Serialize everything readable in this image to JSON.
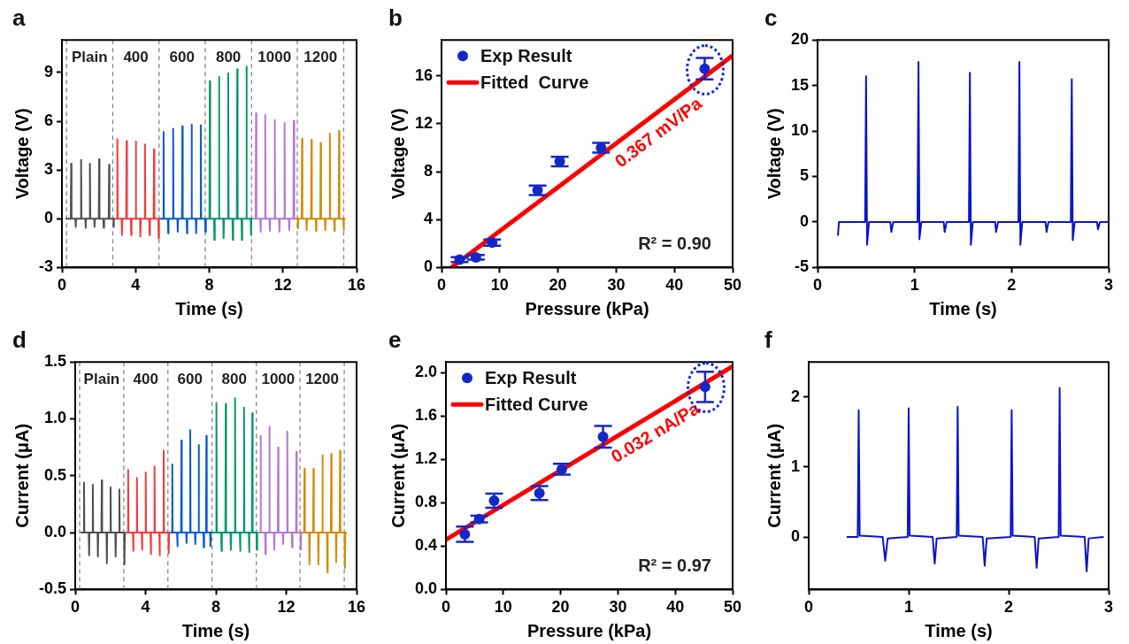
{
  "chart_data": [
    {
      "type": "line",
      "title": "a",
      "xlabel": "Time (s)",
      "ylabel": "Voltage (V)",
      "xlim": [
        0,
        16
      ],
      "xticks": [
        0,
        4,
        8,
        12,
        16
      ],
      "ylim": [
        -3,
        11
      ],
      "yticks": [
        -3,
        0,
        3,
        6,
        9
      ],
      "ref_lines": [
        {
          "axis": "x",
          "value": 0.25
        },
        {
          "axis": "x",
          "value": 2.76
        },
        {
          "axis": "x",
          "value": 5.27
        },
        {
          "axis": "x",
          "value": 7.78
        },
        {
          "axis": "x",
          "value": 10.3
        },
        {
          "axis": "x",
          "value": 12.78
        },
        {
          "axis": "x",
          "value": 15.3
        }
      ],
      "annotations": [
        "Plain",
        "400",
        "600",
        "800",
        "1000",
        "1200"
      ],
      "series": [
        {
          "color": "#505050",
          "x": [
            0.2,
            0.48,
            0.5,
            0.52,
            0.73,
            0.75,
            0.77,
            1.02,
            1.04,
            1.06,
            1.27,
            1.29,
            1.31,
            1.5,
            1.52,
            1.54,
            1.75,
            1.77,
            1.79,
            2.0,
            2.02,
            2.04,
            2.25,
            2.27,
            2.29,
            2.54,
            2.56,
            2.58,
            2.79,
            2.81,
            2.83,
            2.84
          ],
          "values": [
            0,
            0,
            3.39,
            0,
            0,
            -0.5,
            0,
            0,
            3.62,
            0,
            0,
            -0.55,
            0,
            0,
            3.39,
            0,
            0,
            -0.5,
            0,
            0,
            3.66,
            0,
            0,
            -0.55,
            0,
            0,
            3.32,
            0,
            0,
            -0.5,
            0,
            0
          ]
        },
        {
          "color": "#f03c3c",
          "x": [
            2.84,
            2.99,
            3.01,
            3.03,
            3.24,
            3.26,
            3.28,
            3.49,
            3.51,
            3.53,
            3.74,
            3.76,
            3.78,
            3.99,
            4.01,
            4.03,
            4.24,
            4.26,
            4.28,
            4.49,
            4.51,
            4.53,
            4.74,
            4.76,
            4.78,
            4.98,
            5.0,
            5.02,
            5.23,
            5.25,
            5.27,
            5.3
          ],
          "values": [
            0,
            0,
            4.89,
            0,
            0,
            -1.0,
            0,
            0,
            4.78,
            0,
            0,
            -1.0,
            0,
            0,
            4.75,
            0,
            0,
            -1.1,
            0,
            0,
            4.58,
            0,
            0,
            -1.0,
            0,
            0,
            4.28,
            0,
            0,
            -1.2,
            0,
            0
          ]
        },
        {
          "color": "#0a5ad2",
          "x": [
            5.3,
            5.5,
            5.52,
            5.54,
            5.75,
            5.77,
            5.79,
            6.02,
            6.04,
            6.06,
            6.27,
            6.29,
            6.31,
            6.52,
            6.54,
            6.56,
            6.77,
            6.79,
            6.81,
            7.02,
            7.04,
            7.06,
            7.27,
            7.29,
            7.31,
            7.52,
            7.54,
            7.56,
            7.77,
            7.79,
            7.81,
            7.83
          ],
          "values": [
            0,
            0,
            5.33,
            0,
            0,
            -0.9,
            0,
            0,
            5.54,
            0,
            0,
            -0.8,
            0,
            0,
            5.69,
            0,
            0,
            -0.9,
            0,
            0,
            5.8,
            0,
            0,
            -0.9,
            0,
            0,
            5.76,
            0,
            0,
            -0.8,
            0,
            0
          ]
        },
        {
          "color": "#05966a",
          "x": [
            7.83,
            8.01,
            8.03,
            8.05,
            8.26,
            8.28,
            8.3,
            8.51,
            8.53,
            8.55,
            8.76,
            8.78,
            8.8,
            9.01,
            9.03,
            9.05,
            9.26,
            9.28,
            9.3,
            9.5,
            9.52,
            9.54,
            9.75,
            9.77,
            9.79,
            10.0,
            10.02,
            10.04,
            10.25,
            10.27,
            10.29,
            10.35
          ],
          "values": [
            0,
            0,
            8.46,
            0,
            0,
            -1.3,
            0,
            0,
            8.73,
            0,
            0,
            -1.2,
            0,
            0,
            8.95,
            0,
            0,
            -1.3,
            0,
            0,
            9.2,
            0,
            0,
            -1.3,
            0,
            0,
            9.37,
            0,
            0,
            -1.0,
            0,
            0
          ]
        },
        {
          "color": "#b478d2",
          "x": [
            10.35,
            10.52,
            10.54,
            10.56,
            10.77,
            10.79,
            10.81,
            11.02,
            11.04,
            11.06,
            11.27,
            11.29,
            11.31,
            11.54,
            11.56,
            11.58,
            11.79,
            11.81,
            11.83,
            12.07,
            12.09,
            12.11,
            12.32,
            12.34,
            12.36,
            12.57,
            12.59,
            12.61,
            12.62
          ],
          "values": [
            0,
            0,
            6.49,
            0,
            0,
            -0.8,
            0,
            0,
            6.39,
            0,
            0,
            -0.75,
            0,
            0,
            6.07,
            0,
            0,
            -0.8,
            0,
            0,
            5.89,
            0,
            0,
            -0.7,
            0,
            0,
            6.03,
            0,
            0
          ]
        },
        {
          "color": "#d28c05",
          "x": [
            12.62,
            12.8,
            12.82,
            12.84,
            13.02,
            13.04,
            13.06,
            13.27,
            13.29,
            13.31,
            13.53,
            13.55,
            13.57,
            13.78,
            13.8,
            13.82,
            14.03,
            14.05,
            14.07,
            14.28,
            14.3,
            14.32,
            14.53,
            14.55,
            14.57,
            14.78,
            14.8,
            14.82,
            15.03,
            15.05,
            15.07,
            15.28,
            15.3,
            15.32,
            15.4
          ],
          "values": [
            0,
            0,
            -0.6,
            0,
            0,
            4.93,
            0,
            0,
            -0.7,
            0,
            0,
            4.86,
            0,
            0,
            -0.75,
            0,
            0,
            4.66,
            0,
            0,
            -0.7,
            0,
            0,
            5.24,
            0,
            0,
            -0.75,
            0,
            0,
            5.4,
            0,
            0,
            -0.7,
            0,
            0
          ]
        }
      ]
    },
    {
      "type": "scatter",
      "title": "b",
      "xlabel": "Pressure (kPa)",
      "ylabel": "Voltage (V)",
      "xlim": [
        0,
        50
      ],
      "xticks": [
        0,
        10,
        20,
        30,
        40,
        50
      ],
      "ylim": [
        0,
        19
      ],
      "yticks": [
        0,
        4,
        8,
        12,
        16
      ],
      "legend": "top left",
      "annotations": [
        "0.367 mV/Pa",
        "R² = 0.90"
      ],
      "series": [
        {
          "name": "Exp Result",
          "marker": "circle",
          "color": "#1428c8",
          "x": [
            3.1,
            5.9,
            8.7,
            16.5,
            20.3,
            27.4,
            45.2
          ],
          "values": [
            0.66,
            0.85,
            2.08,
            6.45,
            8.85,
            10.0,
            16.6
          ],
          "errors": [
            0.2,
            0.2,
            0.25,
            0.4,
            0.4,
            0.4,
            0.9
          ]
        },
        {
          "name": "Fitted  Curve",
          "type": "line",
          "color": "#ff0000",
          "x": [
            1.7,
            50
          ],
          "values": [
            0,
            17.7
          ]
        }
      ]
    },
    {
      "type": "line",
      "title": "c",
      "xlabel": "Time (s)",
      "ylabel": "Voltage (V)",
      "xlim": [
        0,
        3
      ],
      "xticks": [
        0,
        1,
        2,
        3
      ],
      "ylim": [
        -5,
        20
      ],
      "yticks": [
        -5,
        0,
        5,
        10,
        15,
        20
      ],
      "series": [
        {
          "color": "#0a14c8",
          "x": [
            0.21,
            0.22,
            0.49,
            0.5,
            0.51,
            0.53,
            0.75,
            0.76,
            0.78,
            1.03,
            1.04,
            1.05,
            1.07,
            1.3,
            1.31,
            1.33,
            1.56,
            1.57,
            1.58,
            1.6,
            1.83,
            1.84,
            1.86,
            2.07,
            2.08,
            2.09,
            2.11,
            2.35,
            2.36,
            2.38,
            2.61,
            2.62,
            2.63,
            2.65,
            2.88,
            2.89,
            2.91,
            3.0
          ],
          "values": [
            -1.5,
            0,
            0,
            16.0,
            -2.5,
            0,
            0,
            -1.1,
            0,
            0,
            17.6,
            -1.9,
            0,
            0,
            -1.1,
            0,
            0,
            16.4,
            -2.5,
            0,
            0,
            -1.1,
            0,
            0,
            17.6,
            -2.5,
            0,
            0,
            -1.1,
            0,
            0,
            15.7,
            -2.0,
            0,
            0,
            -0.8,
            0,
            0
          ]
        }
      ]
    },
    {
      "type": "line",
      "title": "d",
      "xlabel": "Time (s)",
      "ylabel": "Current (μA)",
      "xlim": [
        0,
        16
      ],
      "xticks": [
        0,
        4,
        8,
        12,
        16
      ],
      "ylim": [
        -0.5,
        1.5
      ],
      "yticks": [
        -0.5,
        {
          "value": 0,
          "label": "0.0"
        },
        0.5,
        {
          "value": 1,
          "label": "1.0"
        },
        1.5
      ],
      "ref_lines": [
        {
          "axis": "x",
          "value": 0.25
        },
        {
          "axis": "x",
          "value": 2.76
        },
        {
          "axis": "x",
          "value": 5.27
        },
        {
          "axis": "x",
          "value": 7.78
        },
        {
          "axis": "x",
          "value": 10.3
        },
        {
          "axis": "x",
          "value": 12.78
        },
        {
          "axis": "x",
          "value": 15.3
        }
      ],
      "annotations": [
        "Plain",
        "400",
        "600",
        "800",
        "1000",
        "1200"
      ],
      "series": [
        {
          "color": "#505050",
          "x": [
            0.3,
            0.48,
            0.5,
            0.52,
            0.77,
            0.79,
            0.81,
            0.98,
            1.0,
            1.02,
            1.27,
            1.29,
            1.31,
            1.49,
            1.51,
            1.53,
            1.78,
            1.8,
            1.82,
            1.99,
            2.01,
            2.03,
            2.28,
            2.3,
            2.32,
            2.49,
            2.51,
            2.53,
            2.78,
            2.8,
            2.82,
            2.86
          ],
          "values": [
            0,
            0,
            0.44,
            0,
            0,
            -0.2,
            0,
            0,
            0.42,
            0,
            0,
            -0.21,
            0,
            0,
            0.46,
            0,
            0,
            -0.27,
            0,
            0,
            0.4,
            0,
            0,
            -0.21,
            0,
            0,
            0.38,
            0,
            0,
            -0.28,
            0,
            0
          ]
        },
        {
          "color": "#f03c3c",
          "x": [
            2.86,
            2.99,
            3.01,
            3.03,
            3.28,
            3.3,
            3.32,
            3.49,
            3.51,
            3.53,
            3.78,
            3.8,
            3.82,
            3.99,
            4.01,
            4.03,
            4.28,
            4.3,
            4.32,
            4.49,
            4.51,
            4.53,
            4.78,
            4.8,
            4.82,
            5.01,
            5.03,
            5.05,
            5.3,
            5.32,
            5.34,
            5.35
          ],
          "values": [
            0,
            0,
            0.55,
            0,
            0,
            -0.16,
            0,
            0,
            0.48,
            0,
            0,
            -0.15,
            0,
            0,
            0.53,
            0,
            0,
            -0.19,
            0,
            0,
            0.58,
            0,
            0,
            -0.2,
            0,
            0,
            0.72,
            0,
            0,
            -0.18,
            0,
            0
          ]
        },
        {
          "color": "#0a5ad2",
          "x": [
            5.35,
            5.5,
            5.52,
            5.54,
            5.79,
            5.81,
            5.83,
            6.02,
            6.04,
            6.06,
            6.31,
            6.33,
            6.35,
            6.52,
            6.54,
            6.56,
            6.81,
            6.83,
            6.85,
            7.0,
            7.02,
            7.04,
            7.29,
            7.31,
            7.33,
            7.44,
            7.46,
            7.48,
            7.67,
            7.69,
            7.71,
            7.8
          ],
          "values": [
            0,
            0,
            0.6,
            0,
            0,
            -0.12,
            0,
            0,
            0.81,
            0,
            0,
            -0.09,
            0,
            0,
            0.9,
            0,
            0,
            -0.1,
            0,
            0,
            0.77,
            0,
            0,
            -0.13,
            0,
            0,
            0.85,
            0,
            0,
            -0.12,
            0,
            0
          ]
        },
        {
          "color": "#05966a",
          "x": [
            7.8,
            8.01,
            8.03,
            8.05,
            8.3,
            8.32,
            8.34,
            8.54,
            8.56,
            8.58,
            8.83,
            8.85,
            8.87,
            9.07,
            9.09,
            9.11,
            9.36,
            9.38,
            9.4,
            9.58,
            9.6,
            9.62,
            9.87,
            9.89,
            9.91,
            10.05,
            10.07,
            10.09,
            10.31,
            10.33,
            10.35,
            10.37
          ],
          "values": [
            0,
            0,
            1.14,
            0,
            0,
            -0.16,
            0,
            0,
            1.13,
            0,
            0,
            -0.15,
            0,
            0,
            1.18,
            0,
            0,
            -0.16,
            0,
            0,
            1.1,
            0,
            0,
            -0.17,
            0,
            0,
            1.05,
            0,
            0,
            -0.15,
            0,
            0
          ]
        },
        {
          "color": "#b478d2",
          "x": [
            10.37,
            10.52,
            10.54,
            10.56,
            10.8,
            10.82,
            10.84,
            11.02,
            11.04,
            11.06,
            11.3,
            11.32,
            11.34,
            11.52,
            11.54,
            11.56,
            11.8,
            11.82,
            11.84,
            12.04,
            12.06,
            12.08,
            12.32,
            12.34,
            12.36,
            12.56,
            12.58,
            12.6,
            12.81,
            12.83,
            12.85,
            12.87
          ],
          "values": [
            0,
            0,
            0.85,
            0,
            0,
            -0.19,
            0,
            0,
            0.93,
            0,
            0,
            -0.15,
            0,
            0,
            0.75,
            0,
            0,
            -0.1,
            0,
            0,
            0.89,
            0,
            0,
            -0.13,
            0,
            0,
            0.71,
            0,
            0,
            -0.15,
            0,
            0
          ]
        },
        {
          "color": "#d28c05",
          "x": [
            12.87,
            13.02,
            13.04,
            13.06,
            13.3,
            13.32,
            13.34,
            13.53,
            13.55,
            13.57,
            13.81,
            13.83,
            13.85,
            14.04,
            14.06,
            14.08,
            14.32,
            14.34,
            14.36,
            14.54,
            14.56,
            14.58,
            14.82,
            14.84,
            14.86,
            15.04,
            15.06,
            15.08,
            15.32,
            15.34,
            15.36,
            15.45
          ],
          "values": [
            0,
            0,
            0.56,
            0,
            0,
            -0.28,
            0,
            0,
            0.56,
            0,
            0,
            -0.28,
            0,
            0,
            0.68,
            0,
            0,
            -0.35,
            0,
            0,
            0.69,
            0,
            0,
            -0.26,
            0,
            0,
            0.72,
            0,
            0,
            -0.31,
            0,
            0
          ]
        }
      ]
    },
    {
      "type": "scatter",
      "title": "e",
      "xlabel": "Pressure (kPa)",
      "ylabel": "Current (μA)",
      "xlim": [
        0,
        50
      ],
      "xticks": [
        0,
        10,
        20,
        30,
        40,
        50
      ],
      "ylim": [
        0,
        2.1
      ],
      "yticks": [
        {
          "value": 0,
          "label": "0.0"
        },
        0.4,
        0.8,
        1.2,
        1.6,
        {
          "value": 2,
          "label": "2.0"
        }
      ],
      "legend": "top left",
      "annotations": [
        "0.032 nA/Pa",
        "R² = 0.97"
      ],
      "series": [
        {
          "name": "Exp Result",
          "marker": "circle",
          "color": "#1428c8",
          "x": [
            3.3,
            5.8,
            8.4,
            16.3,
            20.2,
            27.4,
            45.2
          ],
          "values": [
            0.51,
            0.65,
            0.82,
            0.89,
            1.11,
            1.41,
            1.87
          ],
          "errors": [
            0.07,
            0.03,
            0.065,
            0.065,
            0.05,
            0.1,
            0.14
          ]
        },
        {
          "name": "Fitted Curve",
          "type": "line",
          "color": "#ff0000",
          "x": [
            0,
            50
          ],
          "values": [
            0.46,
            2.06
          ]
        }
      ]
    },
    {
      "type": "line",
      "title": "f",
      "xlabel": "Time (s)",
      "ylabel": "Current (μA)",
      "xlim": [
        0,
        3
      ],
      "xticks": [
        0,
        1,
        2,
        3
      ],
      "ylim": [
        -0.75,
        2.5
      ],
      "yticks": [
        0,
        1,
        2
      ],
      "series": [
        {
          "color": "#0a14c8",
          "x": [
            0.38,
            0.49,
            0.5,
            0.51,
            0.74,
            0.765,
            0.79,
            0.99,
            1.0,
            1.01,
            1.24,
            1.26,
            1.28,
            1.48,
            1.49,
            1.5,
            1.74,
            1.76,
            1.78,
            2.02,
            2.03,
            2.04,
            2.26,
            2.28,
            2.3,
            2.5,
            2.51,
            2.52,
            2.76,
            2.78,
            2.8,
            2.95
          ],
          "values": [
            0,
            0,
            1.81,
            0.02,
            0,
            -0.34,
            -0.02,
            0,
            1.84,
            0.02,
            0,
            -0.38,
            -0.02,
            0,
            1.86,
            0.02,
            0,
            -0.41,
            -0.02,
            0,
            1.81,
            0.02,
            0,
            -0.44,
            -0.02,
            0,
            2.13,
            0.02,
            0,
            -0.49,
            -0.02,
            0
          ]
        }
      ]
    }
  ]
}
